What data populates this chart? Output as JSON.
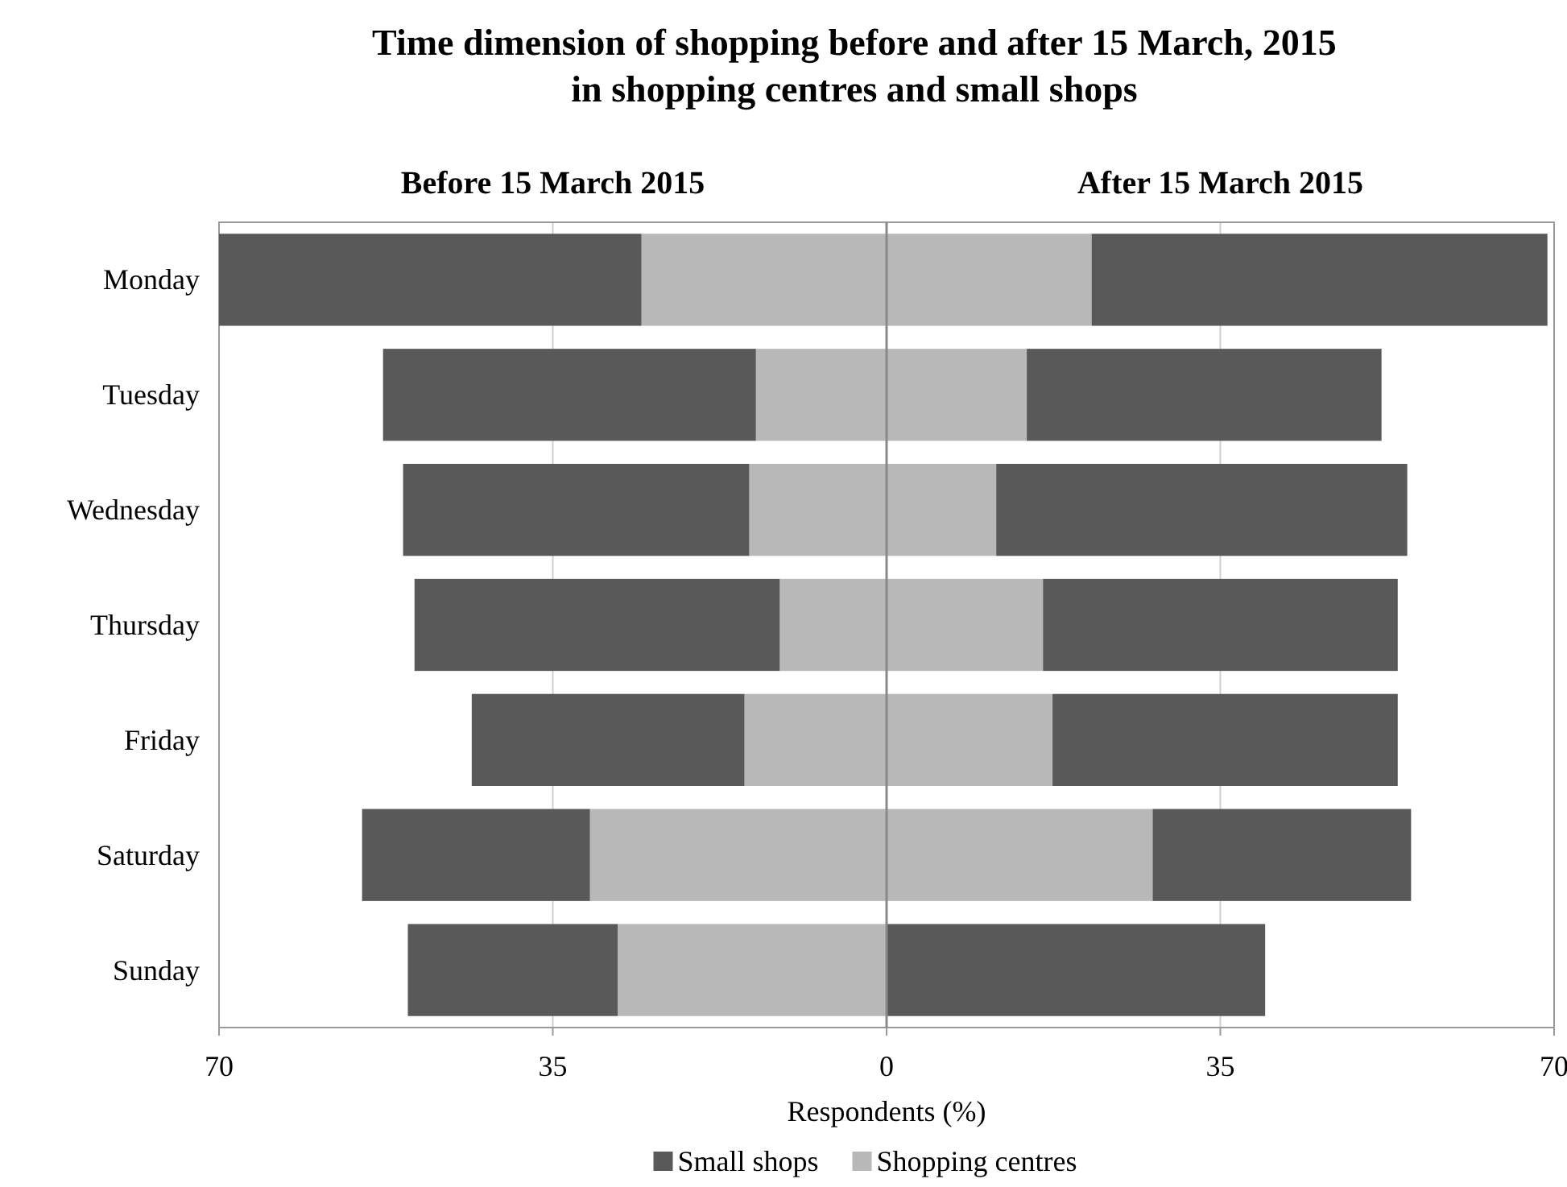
{
  "chart_data": {
    "type": "bar",
    "orientation": "horizontal",
    "stacked": true,
    "title": "Time dimension of shopping before and after 15 March, 2015\nin shopping centres and small shops",
    "annotations": [
      "Before 15 March 2015",
      "After 15 March 2015"
    ],
    "xlabel": "Respondents (%)",
    "categories": [
      "Monday",
      "Tuesday",
      "Wednesday",
      "Thursday",
      "Friday",
      "Saturday",
      "Sunday"
    ],
    "series": [
      {
        "name": "Shopping centres",
        "color": "#b8b8b8",
        "values": [
          -25.7,
          -13.7,
          -14.4,
          -11.2,
          -14.9,
          -31.1,
          -28.2
        ]
      },
      {
        "name": "Small shops",
        "color": "#595959",
        "values": [
          -44.3,
          -39.1,
          -36.3,
          -38.3,
          -28.6,
          -23.9,
          -22.0
        ]
      },
      {
        "color": "#b8b8b8",
        "values": [
          21.5,
          14.7,
          11.5,
          16.4,
          17.4,
          27.9,
          0
        ]
      },
      {
        "color": "#595959",
        "values": [
          47.8,
          37.2,
          43.1,
          37.2,
          36.2,
          27.1,
          39.7
        ]
      }
    ],
    "xlim": [
      -70,
      70
    ],
    "xticks": [
      {
        "value": -70,
        "label": "70"
      },
      {
        "value": -35,
        "label": "35"
      },
      0,
      35,
      70
    ],
    "grid": "x",
    "legend": "bottom"
  }
}
